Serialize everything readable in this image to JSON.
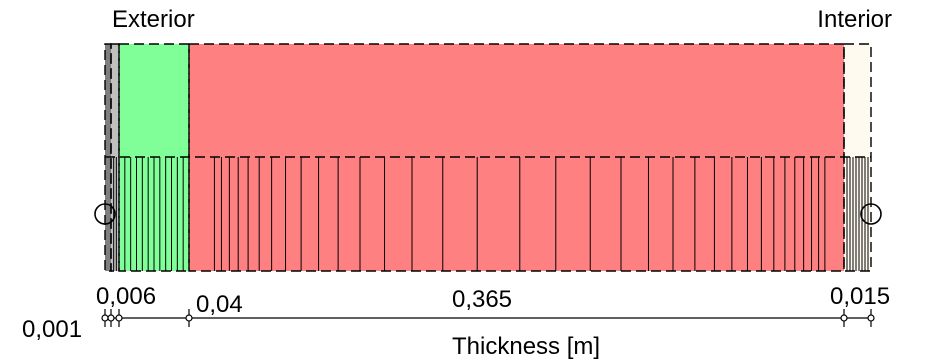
{
  "labels": {
    "exterior": "Exterior",
    "interior": "Interior",
    "axis": "Thickness [m]"
  },
  "layers": [
    {
      "name": "layer-1",
      "thickness_m": 0.001,
      "label": "0,001",
      "color": "#7f7f7f"
    },
    {
      "name": "layer-2",
      "thickness_m": 0.006,
      "label": "0,006",
      "color": "#c0c0c0"
    },
    {
      "name": "layer-3",
      "thickness_m": 0.04,
      "label": "0,04",
      "color": "#80ff99"
    },
    {
      "name": "layer-4",
      "thickness_m": 0.365,
      "label": "0,365",
      "color": "#ff8080"
    },
    {
      "name": "layer-5",
      "thickness_m": 0.015,
      "label": "0,015",
      "color": "#fffaf0"
    }
  ],
  "mesh_lines": 0
}
